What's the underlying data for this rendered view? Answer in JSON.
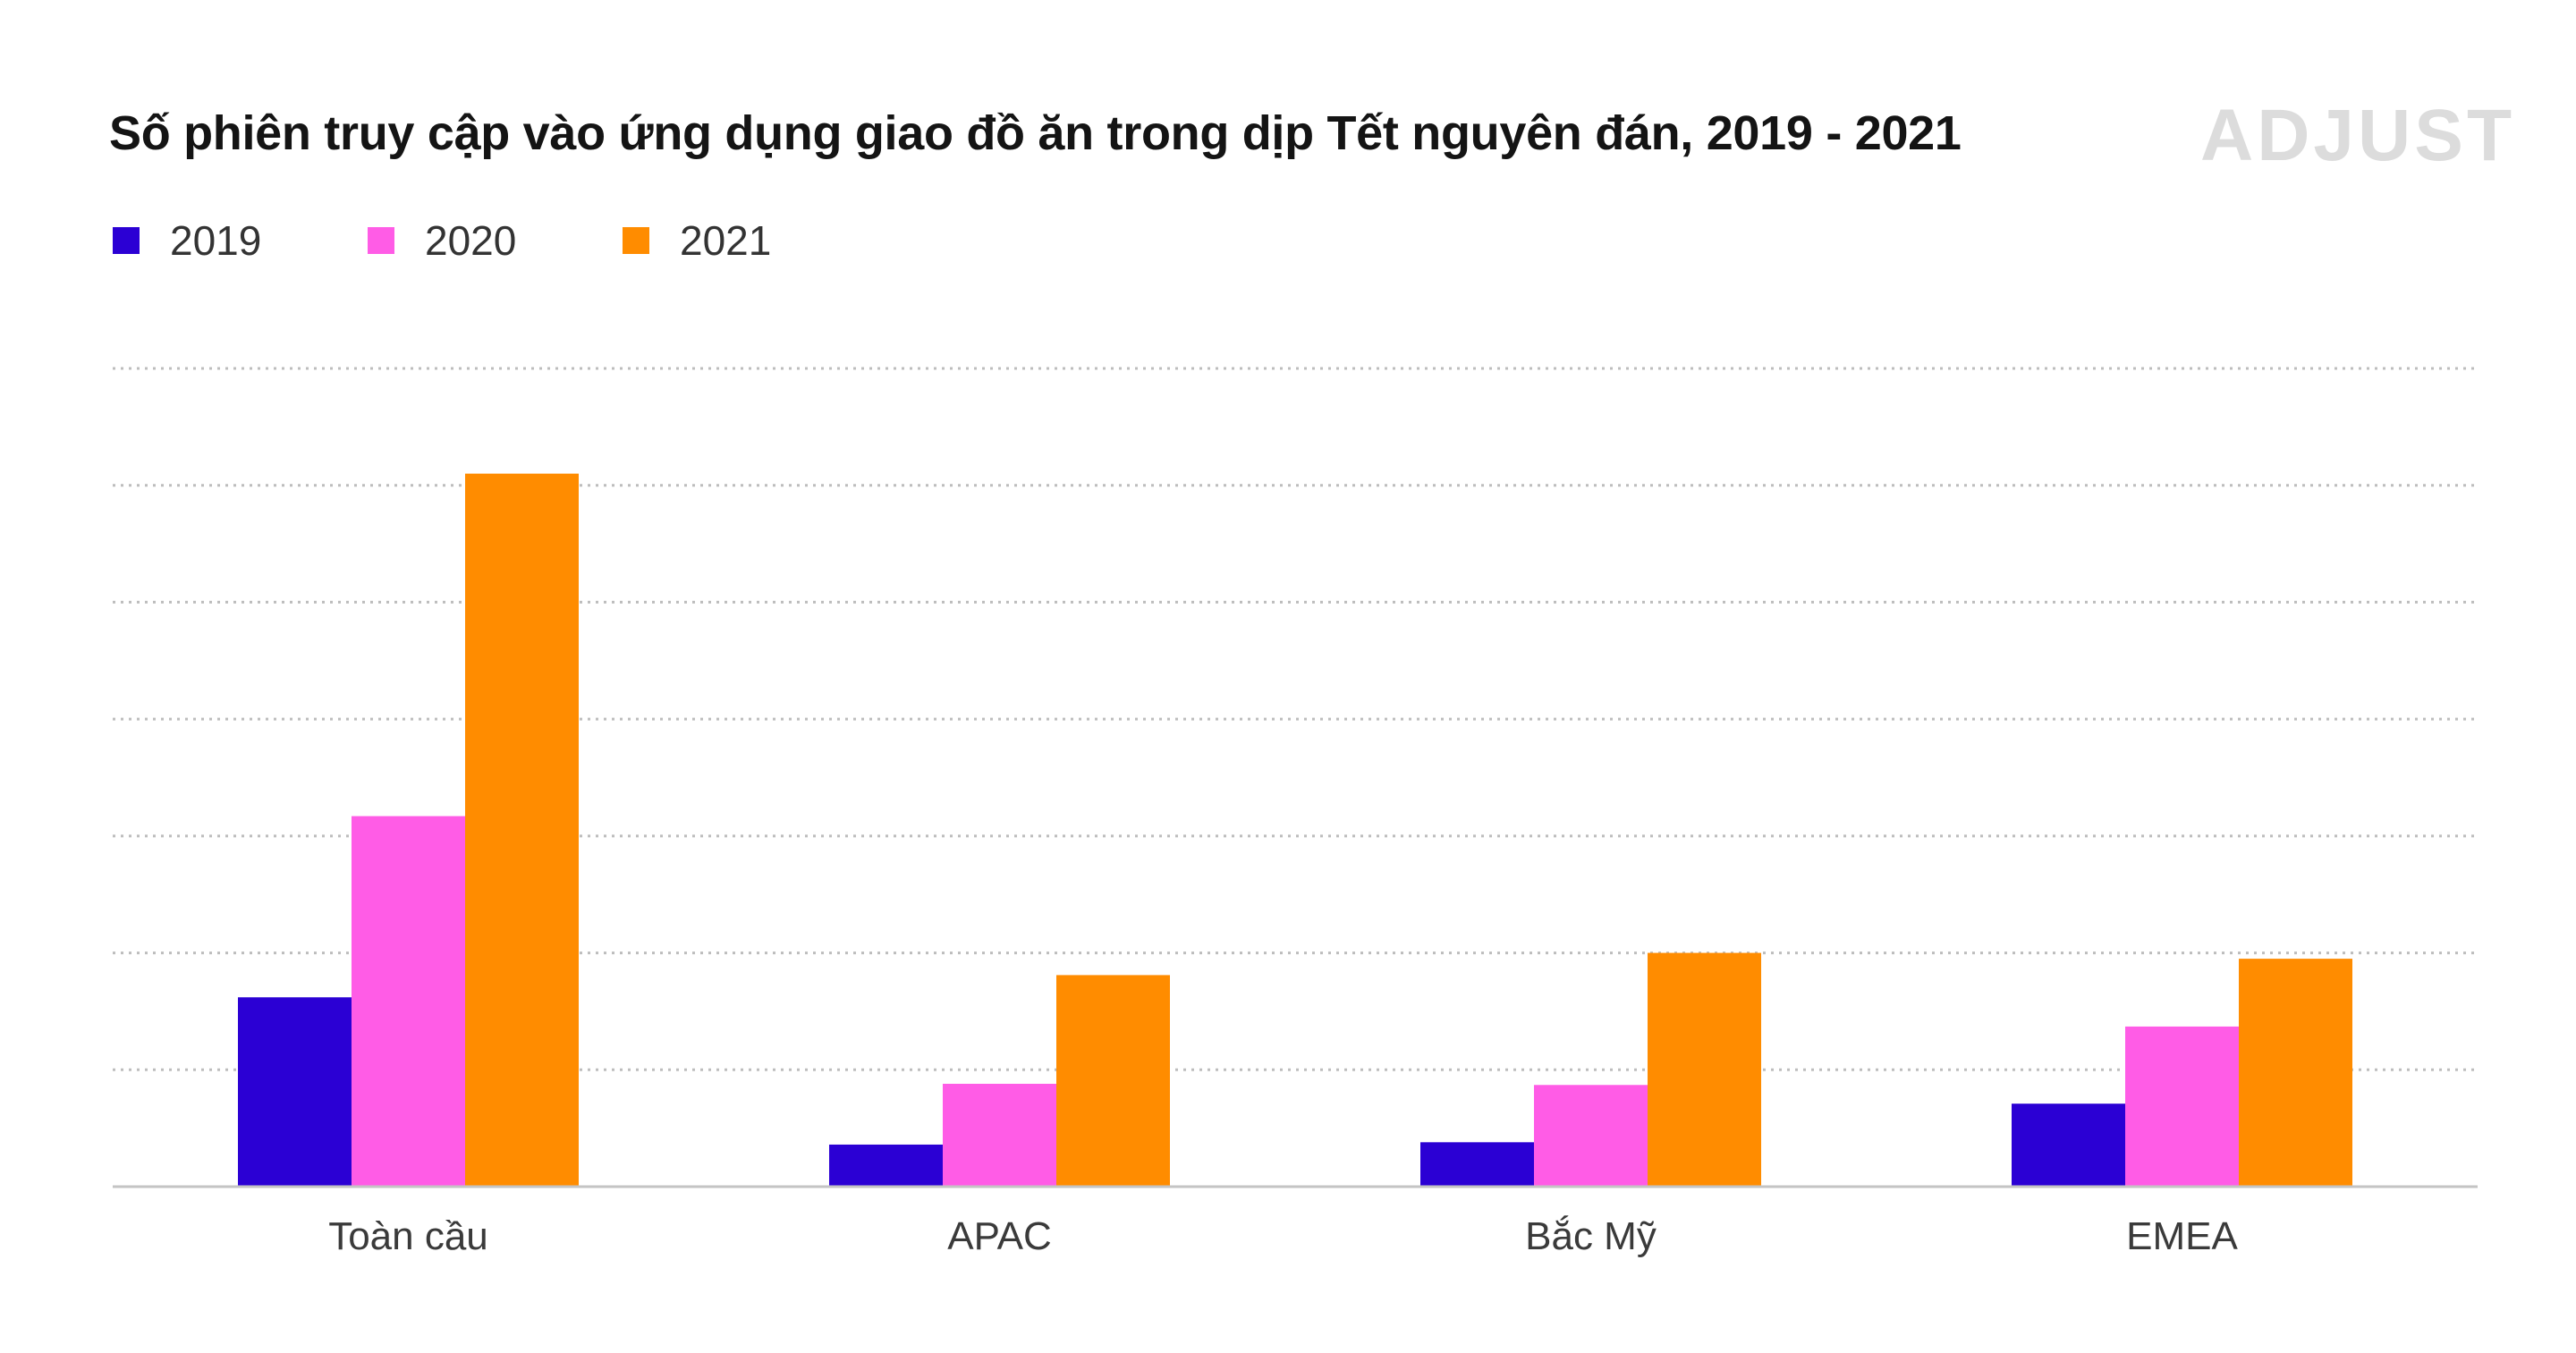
{
  "chart_data": {
    "type": "bar",
    "title": "Số phiên truy cập vào ứng dụng giao đồ ăn trong dịp Tết nguyên đán, 2019 - 2021",
    "categories": [
      "Toàn cầu",
      "APAC",
      "Bắc Mỹ",
      "EMEA"
    ],
    "series": [
      {
        "name": "2019",
        "color": "#2b00d4",
        "values": [
          16.2,
          3.6,
          3.8,
          7.1
        ]
      },
      {
        "name": "2020",
        "color": "#ff5ce6",
        "values": [
          31.7,
          8.8,
          8.7,
          13.7
        ]
      },
      {
        "name": "2021",
        "color": "#ff8c00",
        "values": [
          61.0,
          18.1,
          20.0,
          19.5
        ]
      }
    ],
    "ylim": [
      0,
      70
    ],
    "ytick_step": 10,
    "grid": true,
    "grid_style": "dotted",
    "legend_position": "top-left",
    "xlabel": "",
    "ylabel": ""
  },
  "brand": {
    "logo_text": "ADJUST"
  }
}
